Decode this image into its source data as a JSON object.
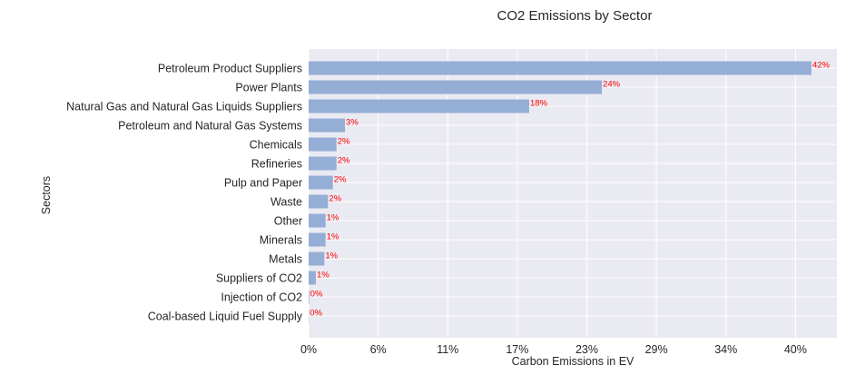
{
  "chart_data": {
    "type": "bar",
    "orientation": "horizontal",
    "title": "CO2 Emissions by Sector",
    "xlabel": "Carbon Emissions in EV",
    "ylabel": "Sectors",
    "categories": [
      "Petroleum Product Suppliers",
      "Power Plants",
      "Natural Gas and Natural Gas Liquids Suppliers",
      "Petroleum and Natural Gas Systems",
      "Chemicals",
      "Refineries",
      "Pulp and Paper",
      "Waste",
      "Other",
      "Minerals",
      "Metals",
      "Suppliers of CO2",
      "Injection of CO2",
      "Coal-based Liquid Fuel Supply"
    ],
    "values": [
      41.5,
      24.2,
      18.2,
      3.0,
      2.3,
      2.3,
      2.0,
      1.6,
      1.4,
      1.4,
      1.3,
      0.6,
      0.05,
      0.02
    ],
    "data_labels": [
      "42%",
      "24%",
      "18%",
      "3%",
      "2%",
      "2%",
      "2%",
      "2%",
      "1%",
      "1%",
      "1%",
      "1%",
      "0%",
      "0%"
    ],
    "xlim": [
      0,
      43.6
    ],
    "xticks": [
      0,
      5.74,
      11.48,
      17.22,
      22.96,
      28.7,
      34.44,
      40.18
    ],
    "xtick_labels": [
      "0%",
      "6%",
      "11%",
      "17%",
      "23%",
      "29%",
      "34%",
      "40%"
    ],
    "grid": true,
    "colors": {
      "bar": "#95aed5",
      "background": "#eaeaf2",
      "grid": "#ffffff",
      "data_label": "#ff0000"
    }
  }
}
